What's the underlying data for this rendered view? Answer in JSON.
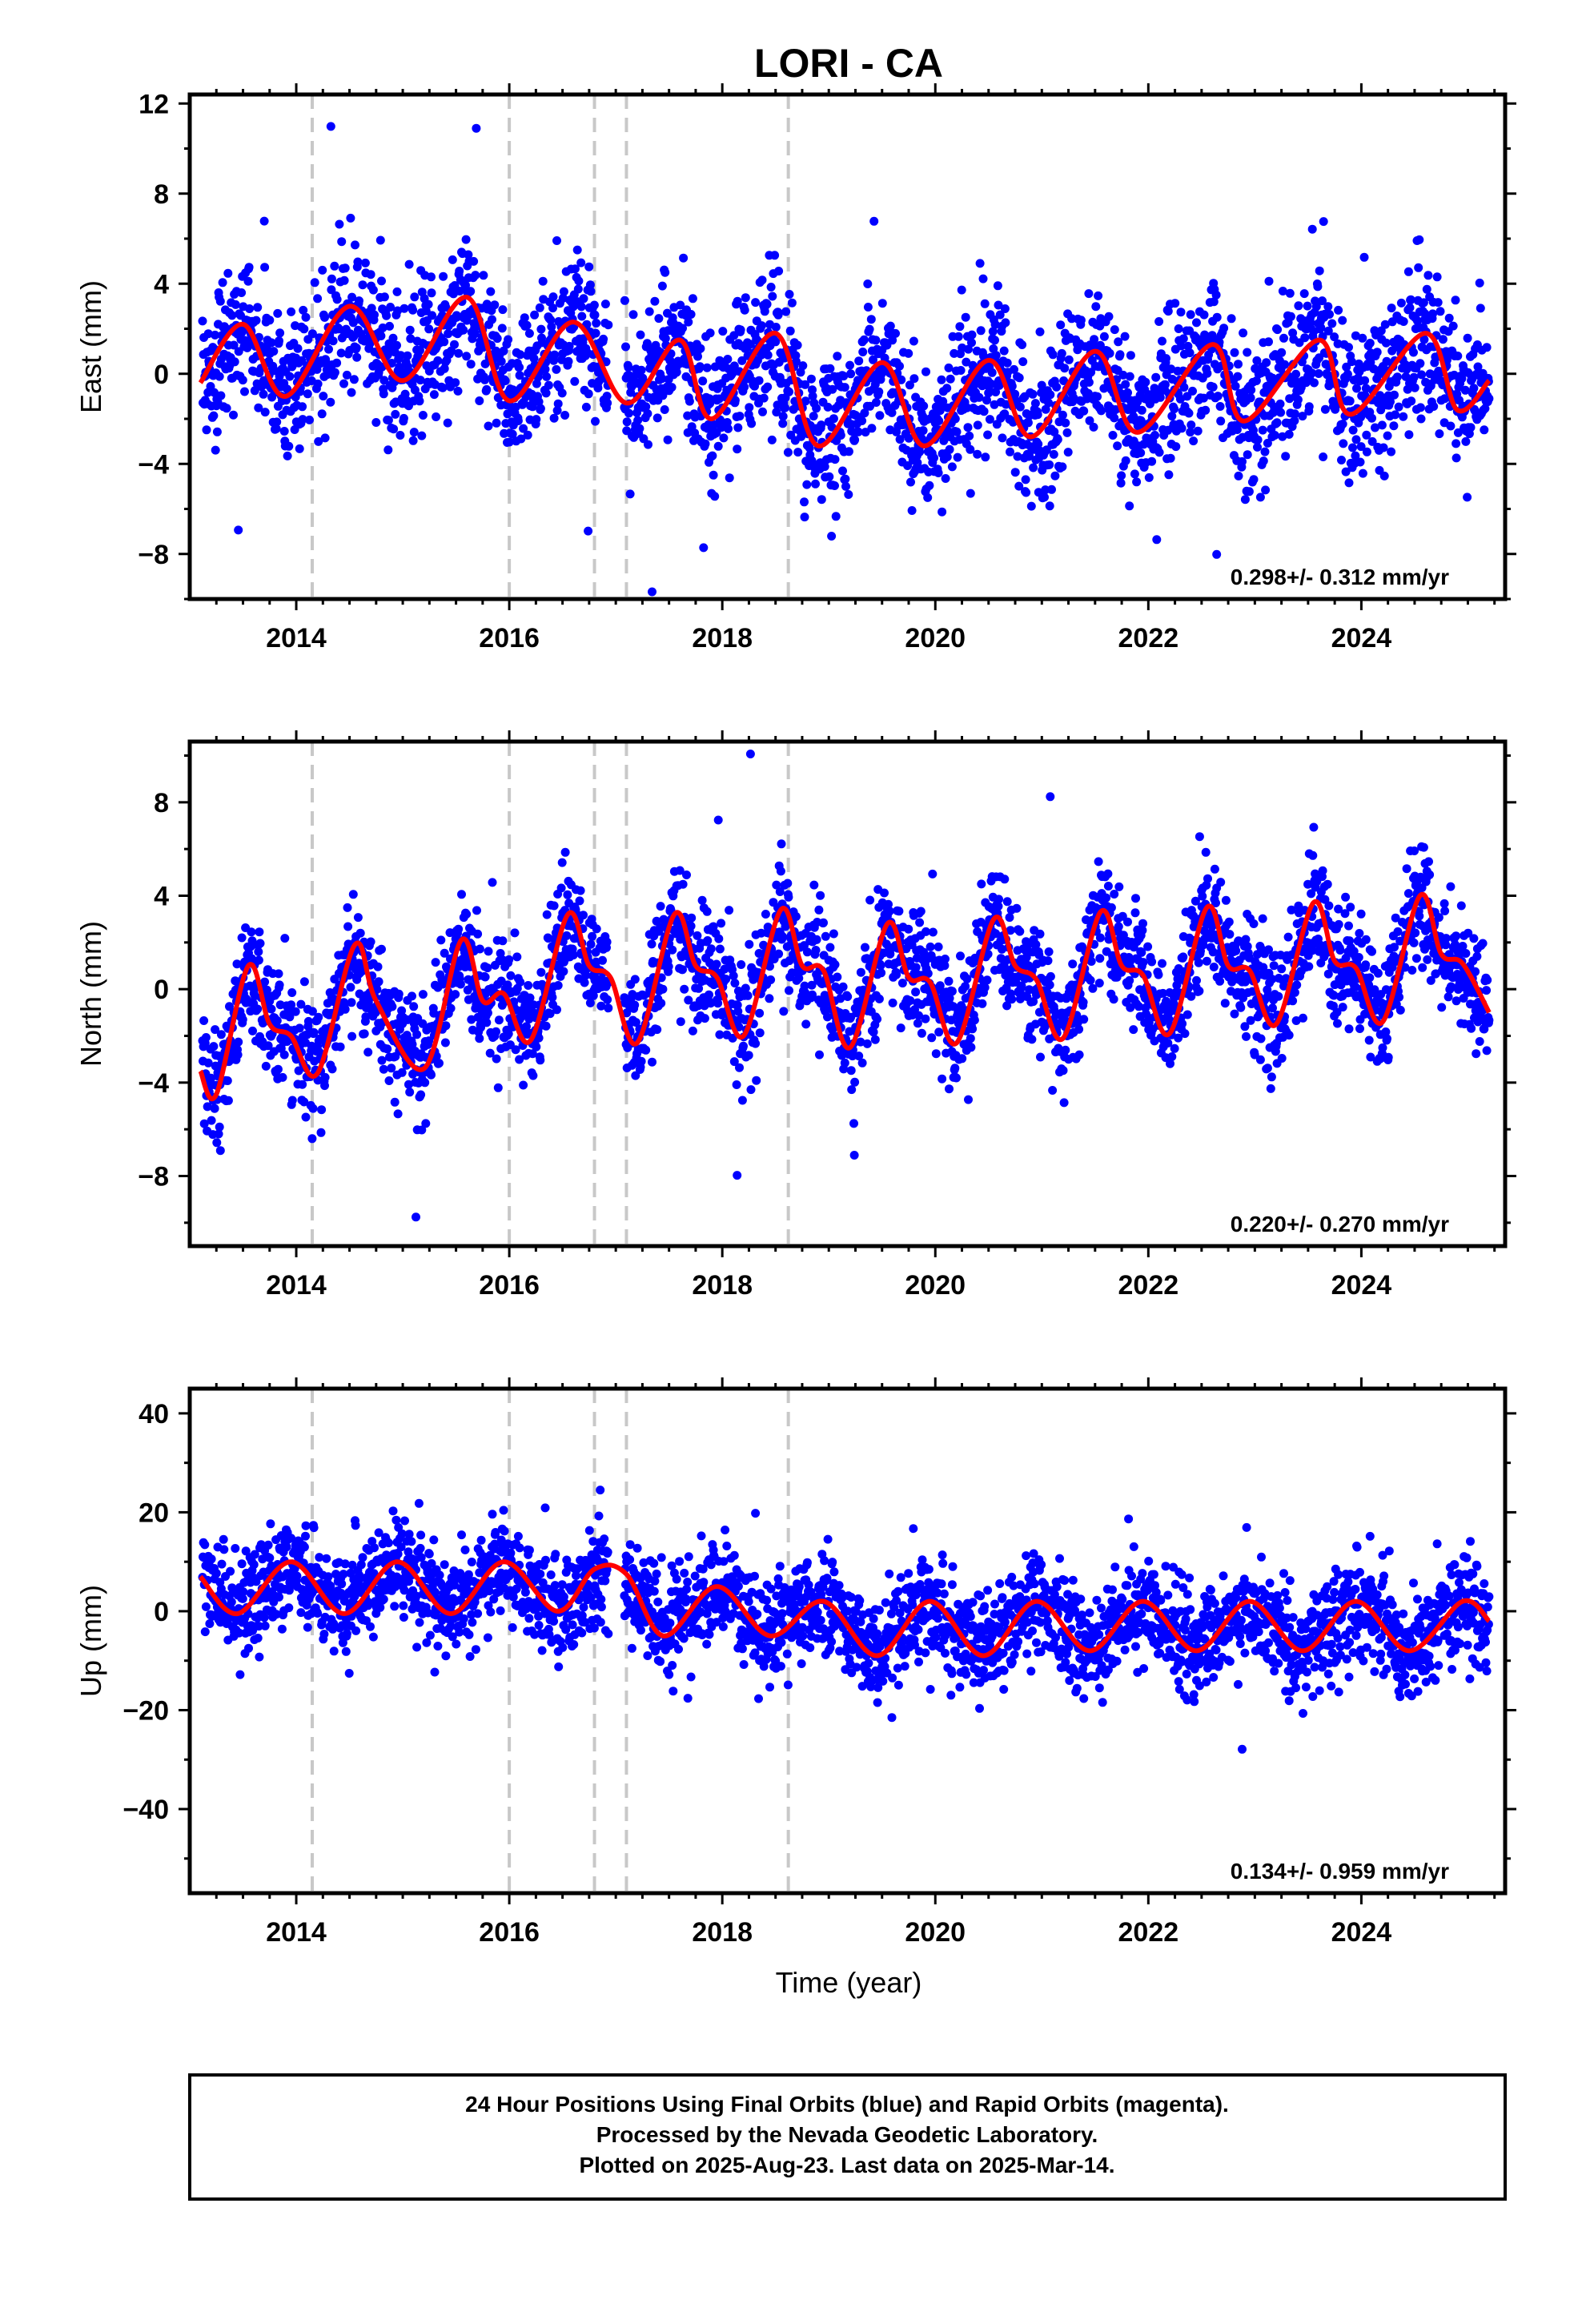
{
  "chart_data": {
    "title": "LORI - CA",
    "type": "scatter",
    "xlabel": "Time (year)",
    "xlim": [
      2013.0,
      2025.35
    ],
    "x_ticks": [
      2014,
      2016,
      2018,
      2020,
      2022,
      2024
    ],
    "event_lines": [
      2014.15,
      2016.0,
      2016.8,
      2017.1,
      2018.62
    ],
    "panels": [
      {
        "id": "east",
        "ylabel": "East (mm)",
        "ylim": [
          -10,
          12.4
        ],
        "y_ticks": [
          -8,
          -4,
          0,
          4,
          8,
          12
        ],
        "rate_text": "0.298+/- 0.312 mm/yr",
        "series": [
          {
            "type": "scatter",
            "color": "#0000ff",
            "x": [],
            "y": []
          },
          {
            "type": "line",
            "color": "#ff0000",
            "x": [
              2013.1,
              2013.5,
              2013.9,
              2014.5,
              2015.0,
              2015.6,
              2016.0,
              2016.6,
              2017.1,
              2017.6,
              2017.9,
              2018.5,
              2018.9,
              2019.5,
              2019.9,
              2020.5,
              2020.9,
              2021.5,
              2021.9,
              2022.6,
              2022.9,
              2023.6,
              2023.9,
              2024.6,
              2024.9,
              2025.2
            ],
            "y": [
              -0.4,
              2.2,
              -1.0,
              3.0,
              -0.3,
              3.4,
              -1.2,
              2.3,
              -1.3,
              1.5,
              -2.0,
              1.8,
              -3.2,
              0.5,
              -3.2,
              0.6,
              -2.8,
              1.0,
              -2.6,
              1.3,
              -2.1,
              1.5,
              -1.8,
              1.8,
              -1.6,
              -0.3
            ]
          }
        ]
      },
      {
        "id": "north",
        "ylabel": "North (mm)",
        "ylim": [
          -11,
          10.6
        ],
        "y_ticks": [
          -8,
          -4,
          0,
          4,
          8
        ],
        "rate_text": "0.220+/- 0.270 mm/yr",
        "series": [
          {
            "type": "scatter",
            "color": "#0000ff",
            "x": [],
            "y": []
          },
          {
            "type": "line",
            "color": "#ff0000",
            "x": [
              2013.1,
              2013.25,
              2013.55,
              2013.75,
              2013.95,
              2014.2,
              2014.55,
              2014.75,
              2015.2,
              2015.55,
              2015.75,
              2015.95,
              2016.2,
              2016.55,
              2016.75,
              2016.95,
              2017.2,
              2017.55,
              2017.75,
              2017.95,
              2018.2,
              2018.55,
              2018.75,
              2018.95,
              2019.2,
              2019.55,
              2019.75,
              2019.95,
              2020.2,
              2020.55,
              2020.75,
              2020.95,
              2021.2,
              2021.55,
              2021.75,
              2021.95,
              2022.2,
              2022.55,
              2022.75,
              2022.95,
              2023.2,
              2023.55,
              2023.75,
              2023.95,
              2024.2,
              2024.55,
              2024.75,
              2024.95,
              2025.2
            ],
            "y": [
              -3.5,
              -4.5,
              1.0,
              -1.5,
              -2.0,
              -3.6,
              1.9,
              -0.5,
              -3.4,
              2.1,
              -0.5,
              -0.2,
              -2.2,
              3.2,
              1.0,
              0.5,
              -2.3,
              3.2,
              1.0,
              0.5,
              -2.0,
              3.4,
              1.0,
              0.8,
              -2.5,
              2.8,
              0.5,
              0.3,
              -2.3,
              3.0,
              1.0,
              0.4,
              -2.1,
              3.3,
              1.0,
              0.6,
              -1.9,
              3.5,
              1.0,
              0.8,
              -1.5,
              3.7,
              1.2,
              0.9,
              -1.4,
              4.0,
              1.5,
              1.1,
              -1.0
            ]
          }
        ]
      },
      {
        "id": "up",
        "ylabel": "Up (mm)",
        "ylim": [
          -57,
          45
        ],
        "y_ticks": [
          -40,
          -20,
          0,
          20,
          40
        ],
        "rate_text": "0.134+/- 0.959 mm/yr",
        "series": [
          {
            "type": "scatter",
            "color": "#0000ff",
            "x": [],
            "y": []
          },
          {
            "type": "line",
            "color": "#ff0000",
            "x": [
              2013.1,
              2013.45,
              2013.95,
              2014.45,
              2014.95,
              2015.45,
              2015.95,
              2016.45,
              2016.8,
              2017.1,
              2017.45,
              2017.95,
              2018.45,
              2018.95,
              2019.45,
              2019.95,
              2020.45,
              2020.95,
              2021.45,
              2021.95,
              2022.45,
              2022.95,
              2023.45,
              2023.95,
              2024.45,
              2024.95,
              2025.2
            ],
            "y": [
              7,
              -0.5,
              10,
              -0.5,
              10,
              -0.5,
              10,
              0,
              8.5,
              7.5,
              -5,
              5,
              -5,
              2,
              -9,
              2,
              -9,
              2,
              -8,
              2,
              -8,
              2,
              -8,
              2,
              -8,
              2,
              -2
            ]
          }
        ]
      }
    ]
  },
  "caption": {
    "lines": [
      "24 Hour Positions Using Final Orbits (blue) and Rapid Orbits (magenta).",
      "Processed by the Nevada Geodetic Laboratory.",
      "Plotted on 2025-Aug-23. Last data on 2025-Mar-14."
    ]
  }
}
